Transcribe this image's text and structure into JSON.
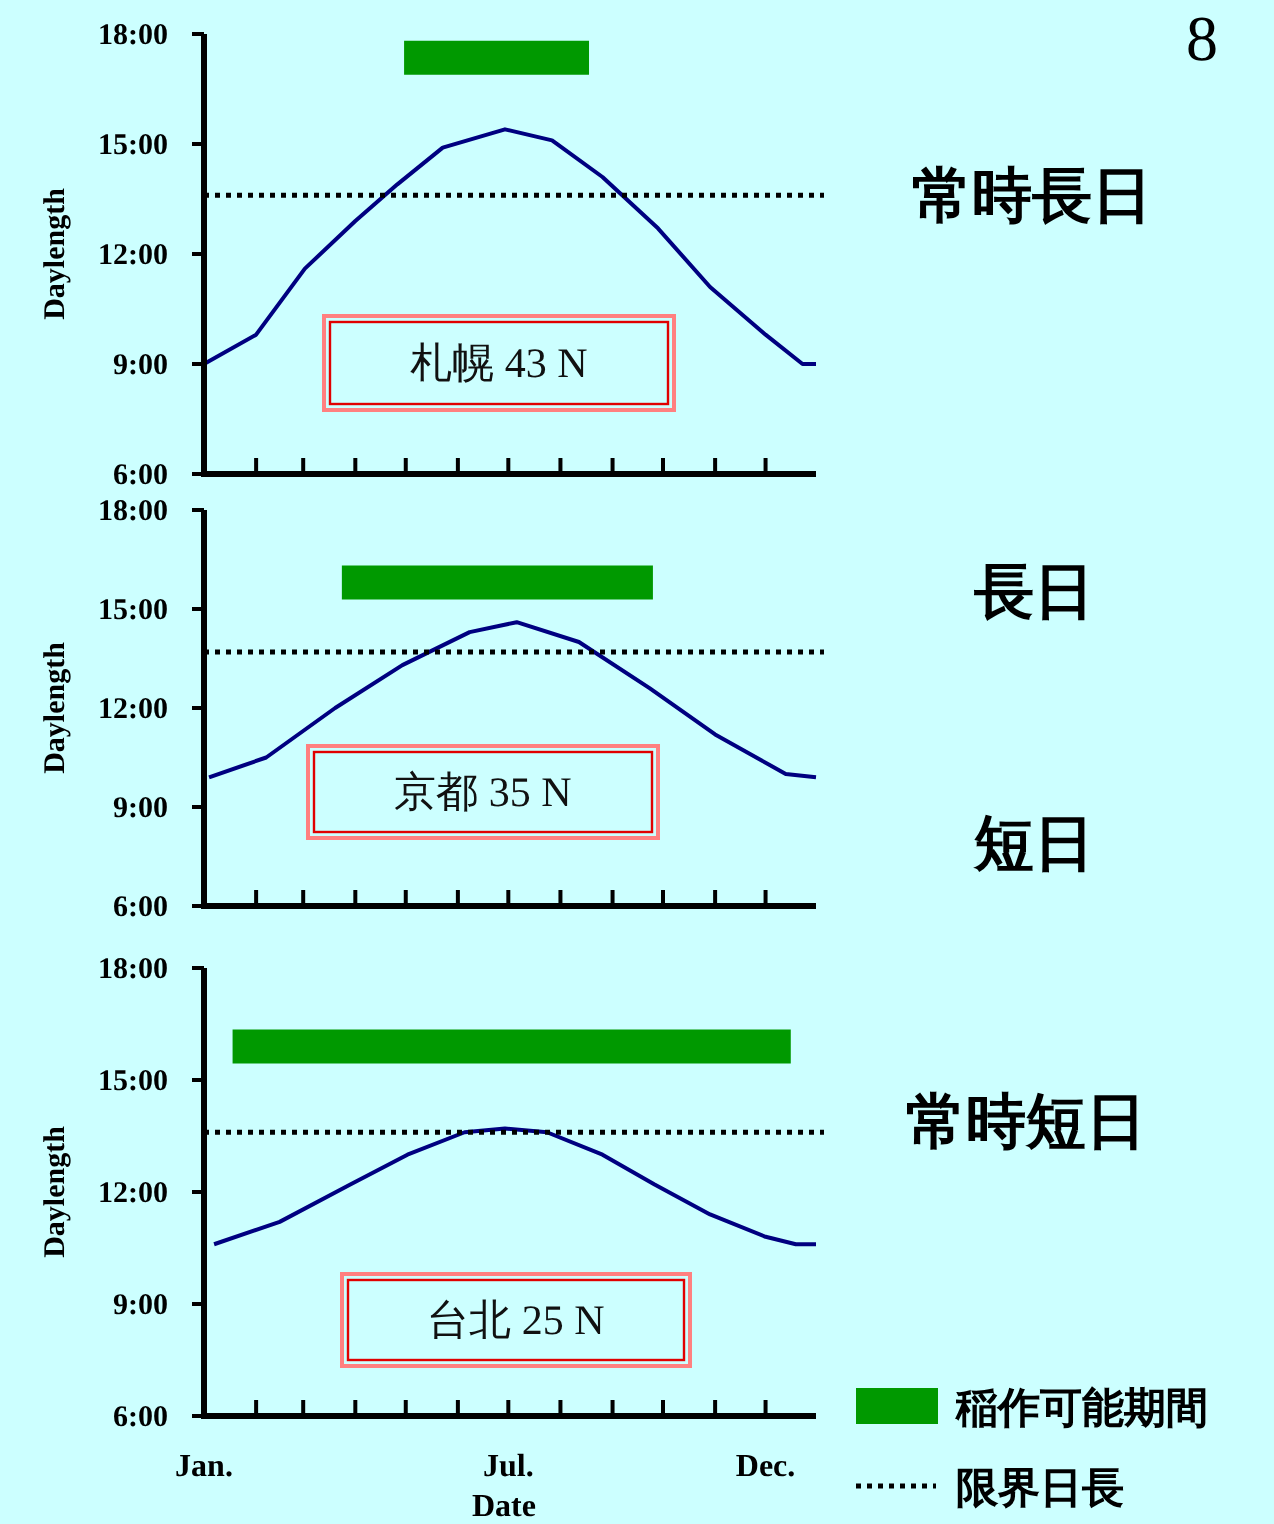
{
  "chart_data": [
    {
      "type": "line",
      "ylabel": "Daylength",
      "xlim": [
        "--01-01",
        "--12-31"
      ],
      "ylim": [
        6,
        18
      ],
      "tick_labels": "y",
      "legend": false,
      "xticks": [
        {
          "value": "--01-01",
          "label": null
        },
        {
          "value": "--02-01",
          "label": null
        },
        {
          "value": "--03-01",
          "label": null
        },
        {
          "value": "--04-01",
          "label": null
        },
        {
          "value": "--05-01",
          "label": null
        },
        {
          "value": "--06-01",
          "label": null
        },
        {
          "value": "--07-01",
          "label": null
        },
        {
          "value": "--08-01",
          "label": null
        },
        {
          "value": "--09-01",
          "label": null
        },
        {
          "value": "--10-01",
          "label": null
        },
        {
          "value": "--11-01",
          "label": null
        },
        {
          "value": "--12-01",
          "label": null
        }
      ],
      "yticks": [
        {
          "value": 6,
          "label": "6:00"
        },
        {
          "value": 9,
          "label": "9:00"
        },
        {
          "value": 12,
          "label": "12:00"
        },
        {
          "value": 15,
          "label": "15:00"
        },
        {
          "value": 18,
          "label": "18:00"
        }
      ],
      "series": [
        {
          "type": "line",
          "color": "#000080",
          "line_style": "solid",
          "x": [
            "--01-01",
            "--02-01",
            "--03-02",
            "--04-01",
            "--04-26",
            "--05-23",
            "--06-29",
            "--07-27",
            "--08-26",
            "--09-28",
            "--10-29",
            "--12-01",
            "--12-23",
            "--12-31"
          ],
          "values": [
            9.0,
            9.8,
            11.6,
            12.9,
            13.9,
            14.9,
            15.4,
            15.1,
            14.1,
            12.7,
            11.1,
            9.8,
            9.0,
            9.0
          ]
        },
        {
          "type": "line",
          "color": "#009900",
          "x": [
            "--04-30",
            "--08-18"
          ],
          "values": [
            17.35,
            17.35
          ]
        }
      ],
      "ref_lines": [
        {
          "axis": "y",
          "value": 13.6,
          "color": "#000000",
          "line_style": "dotted"
        }
      ],
      "annotations": [
        "札幌 43 N",
        "常時長日",
        "8"
      ]
    },
    {
      "type": "line",
      "ylabel": "Daylength",
      "xlim": [
        "--01-01",
        "--12-31"
      ],
      "ylim": [
        6,
        18
      ],
      "tick_labels": "y",
      "legend": false,
      "xticks": [
        {
          "value": "--01-01",
          "label": null
        },
        {
          "value": "--02-01",
          "label": null
        },
        {
          "value": "--03-01",
          "label": null
        },
        {
          "value": "--04-01",
          "label": null
        },
        {
          "value": "--05-01",
          "label": null
        },
        {
          "value": "--06-01",
          "label": null
        },
        {
          "value": "--07-01",
          "label": null
        },
        {
          "value": "--08-01",
          "label": null
        },
        {
          "value": "--09-01",
          "label": null
        },
        {
          "value": "--10-01",
          "label": null
        },
        {
          "value": "--11-01",
          "label": null
        },
        {
          "value": "--12-01",
          "label": null
        }
      ],
      "yticks": [
        {
          "value": 6,
          "label": "6:00"
        },
        {
          "value": 9,
          "label": "9:00"
        },
        {
          "value": 12,
          "label": "12:00"
        },
        {
          "value": 15,
          "label": "15:00"
        },
        {
          "value": 18,
          "label": "18:00"
        }
      ],
      "series": [
        {
          "type": "line",
          "color": "#000080",
          "line_style": "solid",
          "x": [
            "--01-04",
            "--02-07",
            "--03-20",
            "--04-29",
            "--06-08",
            "--07-06",
            "--08-12",
            "--09-23",
            "--11-01",
            "--12-13",
            "--12-31"
          ],
          "values": [
            9.9,
            10.5,
            12.0,
            13.3,
            14.3,
            14.6,
            14.0,
            12.6,
            11.2,
            10.0,
            9.9
          ]
        },
        {
          "type": "line",
          "color": "#009900",
          "x": [
            "--03-24",
            "--09-25"
          ],
          "values": [
            15.8,
            15.8
          ]
        }
      ],
      "ref_lines": [
        {
          "axis": "y",
          "value": 13.7,
          "color": "#000000",
          "line_style": "dotted"
        }
      ],
      "annotations": [
        "京都 35 N",
        "長日",
        "短日"
      ]
    },
    {
      "type": "line",
      "ylabel": "Daylength",
      "xlabel": "Date",
      "xlim": [
        "--01-01",
        "--12-31"
      ],
      "ylim": [
        6,
        18
      ],
      "legend": "bottom right",
      "xticks": [
        {
          "value": "--01-01",
          "label": "Jan."
        },
        {
          "value": "--02-01",
          "label": null
        },
        {
          "value": "--03-01",
          "label": null
        },
        {
          "value": "--04-01",
          "label": null
        },
        {
          "value": "--05-01",
          "label": null
        },
        {
          "value": "--06-01",
          "label": null
        },
        {
          "value": "--07-01",
          "label": "Jul."
        },
        {
          "value": "--08-01",
          "label": null
        },
        {
          "value": "--09-01",
          "label": null
        },
        {
          "value": "--10-01",
          "label": null
        },
        {
          "value": "--11-01",
          "label": null
        },
        {
          "value": "--12-01",
          "label": "Dec."
        }
      ],
      "yticks": [
        {
          "value": 6,
          "label": "6:00"
        },
        {
          "value": 9,
          "label": "9:00"
        },
        {
          "value": 12,
          "label": "12:00"
        },
        {
          "value": 15,
          "label": "15:00"
        },
        {
          "value": 18,
          "label": "18:00"
        }
      ],
      "series": [
        {
          "type": "line",
          "color": "#000080",
          "line_style": "solid",
          "x": [
            "--01-07",
            "--02-15",
            "--03-29",
            "--05-02",
            "--06-05",
            "--06-29",
            "--07-24",
            "--08-26",
            "--09-26",
            "--10-29",
            "--12-01",
            "--12-19",
            "--12-31"
          ],
          "values": [
            10.6,
            11.2,
            12.2,
            13.0,
            13.6,
            13.7,
            13.6,
            13.0,
            12.2,
            11.4,
            10.8,
            10.6,
            10.6
          ]
        },
        {
          "type": "line",
          "name": "稲作可能期間",
          "color": "#009900",
          "x": [
            "--01-18",
            "--12-16"
          ],
          "values": [
            15.9,
            15.9
          ]
        }
      ],
      "ref_lines": [
        {
          "axis": "y",
          "value": 13.6,
          "label": "限界日長",
          "color": "#000000",
          "line_style": "dotted"
        }
      ],
      "annotations": [
        "台北 25 N",
        "常時短日"
      ]
    }
  ]
}
